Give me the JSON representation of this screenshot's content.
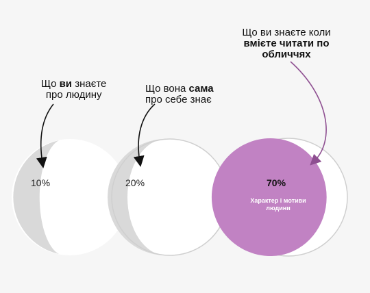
{
  "colors": {
    "background": "#f6f6f6",
    "shade": "#d9d9d9",
    "outline": "#cfcfcf",
    "accent": "#c182c3",
    "arrow_purple": "#8e4f91",
    "text": "#111111"
  },
  "circles": [
    {
      "label_pre": "Що ",
      "label_bold": "ви",
      "label_post": " знаєте",
      "label_line2": "про людину",
      "percent": "10%",
      "share": 0.1
    },
    {
      "label_pre": "Що вона ",
      "label_bold": "сама",
      "label_post": "",
      "label_line2": "про себе знає",
      "percent": "20%",
      "share": 0.2
    },
    {
      "label_line1": "Що ви знаєте коли",
      "label_bold_line2": "вмієте читати по",
      "label_bold_line3": "обличчях",
      "percent": "70%",
      "caption_line1": "Характер і мотиви",
      "caption_line2": "людини",
      "share": 0.7
    }
  ]
}
